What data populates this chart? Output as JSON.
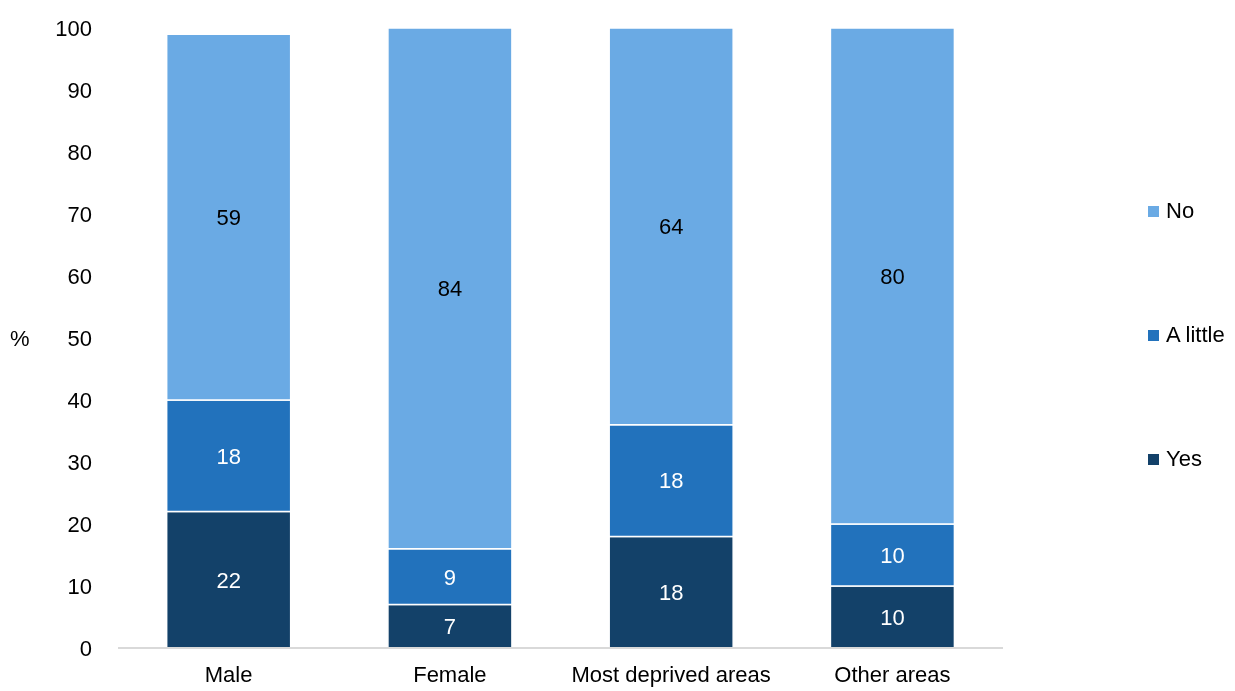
{
  "chart_data": {
    "type": "bar",
    "stacked": true,
    "ylabel": "%",
    "categories": [
      "Male",
      "Female",
      "Most deprived areas",
      "Other areas"
    ],
    "series": [
      {
        "name": "Yes",
        "color": "#134169",
        "values": [
          22,
          7,
          18,
          10
        ]
      },
      {
        "name": "A little",
        "color": "#2272bc",
        "values": [
          18,
          9,
          18,
          10
        ]
      },
      {
        "name": "No",
        "color": "#6aaae4",
        "values": [
          59,
          84,
          64,
          80
        ]
      }
    ],
    "ylim": [
      0,
      100
    ],
    "yticks": [
      0,
      10,
      20,
      30,
      40,
      50,
      60,
      70,
      80,
      90,
      100
    ],
    "data_labels": true,
    "legend": "right"
  }
}
